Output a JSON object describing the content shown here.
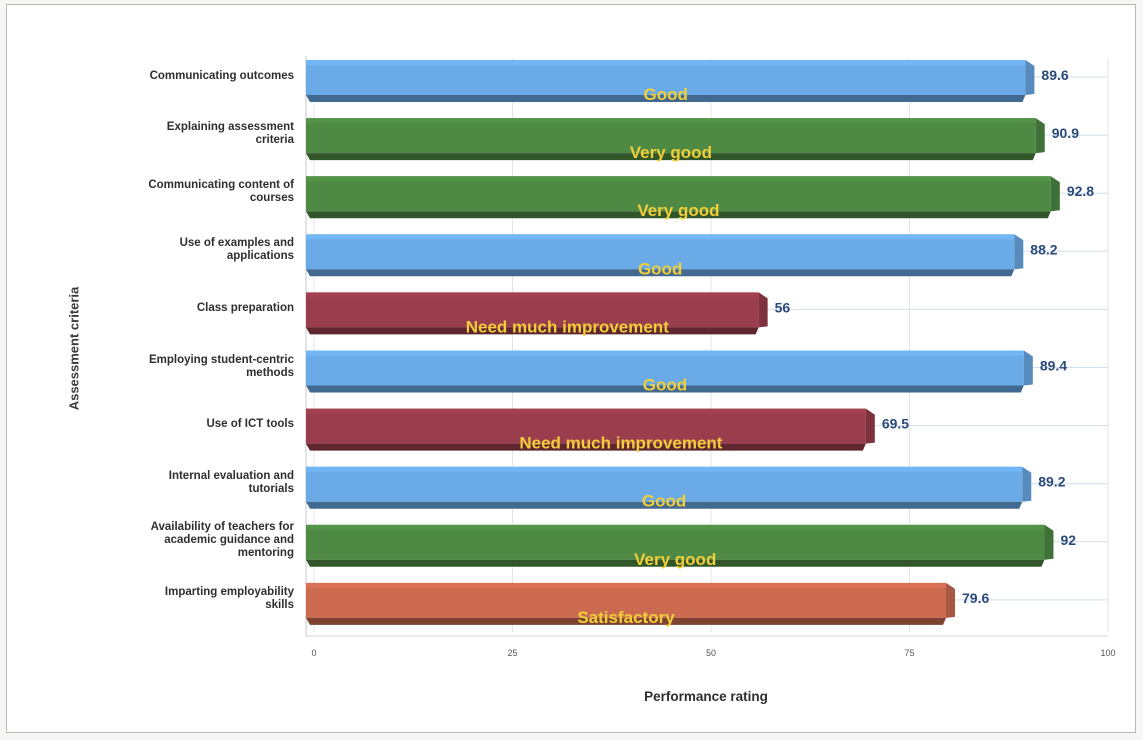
{
  "chart_data": {
    "type": "bar",
    "orientation": "horizontal",
    "xlabel": "Performance rating",
    "ylabel": "Assessment criteria",
    "xlim": [
      0,
      100
    ],
    "ticks": [
      "0",
      "25",
      "50",
      "75",
      "100"
    ],
    "grid": true,
    "categories": [
      "Communicating outcomes",
      "Explaining assessment criteria",
      "Communicating content of courses",
      "Use of examples and applications",
      "Class preparation",
      "Employing student-centric methods",
      "Use of ICT tools",
      "Internal evaluation and tutorials",
      "Availability of teachers for academic guidance and mentoring",
      "Imparting employability skills"
    ],
    "category_lines": [
      [
        "Communicating outcomes"
      ],
      [
        "Explaining assessment",
        "criteria"
      ],
      [
        "Communicating content of",
        "courses"
      ],
      [
        "Use of examples and",
        "applications"
      ],
      [
        "Class preparation"
      ],
      [
        "Employing student-centric",
        "methods"
      ],
      [
        "Use of ICT tools"
      ],
      [
        "Internal evaluation and",
        "tutorials"
      ],
      [
        "Availability of teachers for",
        "academic guidance and",
        "mentoring"
      ],
      [
        "Imparting employability",
        "skills"
      ]
    ],
    "values": [
      89.6,
      90.9,
      92.8,
      88.2,
      56,
      89.4,
      69.5,
      89.2,
      92,
      79.6
    ],
    "value_labels": [
      "89.6",
      "90.9",
      "92.8",
      "88.2",
      "56",
      "89.4",
      "69.5",
      "89.2",
      "92",
      "79.6"
    ],
    "ratings": [
      "Good",
      "Very good",
      "Very good",
      "Good",
      "Need much improvement",
      "Good",
      "Need much improvement",
      "Good",
      "Very good",
      "Satisfactory"
    ],
    "rating_colors": {
      "Good": "#6aaae6",
      "Very good": "#4e8a44",
      "Need much improvement": "#9a3d4c",
      "Satisfactory": "#cc6a50"
    }
  }
}
